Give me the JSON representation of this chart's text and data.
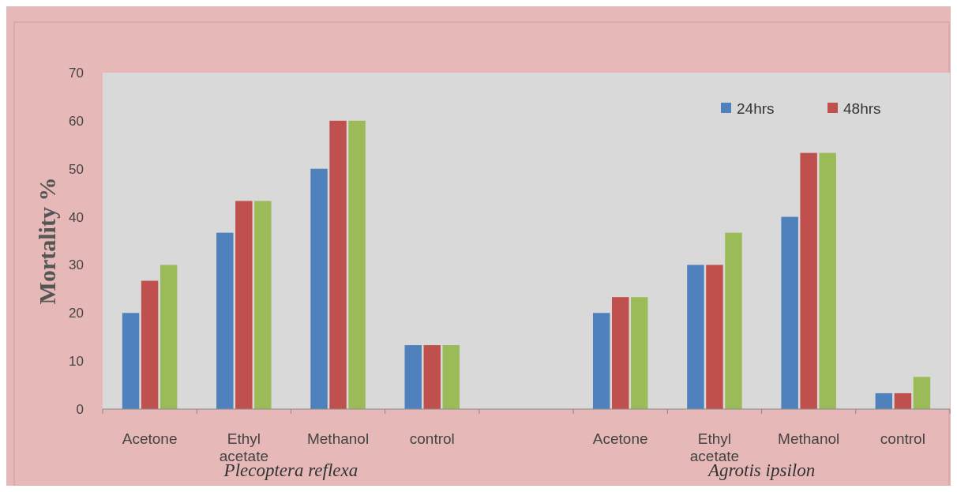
{
  "chart_data": {
    "type": "bar",
    "ylabel": "Mortality %",
    "categories": [
      "Acetone",
      "Ethyl acetate",
      "Methanol",
      "control",
      null,
      "Acetone",
      "Ethyl acetate",
      "Methanol",
      "control"
    ],
    "series": [
      {
        "name": "24hrs",
        "color": "#4f81bd",
        "values": [
          20,
          36.7,
          50,
          13.3,
          null,
          20,
          30,
          40,
          3.3
        ]
      },
      {
        "name": "48hrs",
        "color": "#c0504d",
        "values": [
          26.7,
          43.3,
          60,
          13.3,
          null,
          23.3,
          30,
          53.3,
          3.3
        ]
      },
      {
        "color": "#9bbb59",
        "values": [
          30,
          43.3,
          60,
          13.3,
          null,
          23.3,
          36.7,
          53.3,
          6.7
        ]
      }
    ],
    "ylim": [
      0,
      70
    ],
    "yticks": [
      0,
      10,
      20,
      30,
      40,
      50,
      60,
      70
    ],
    "grid": false,
    "legend": "top right",
    "annotations": [
      "Plecoptera reflexa",
      "Agrotis ipsilon"
    ]
  }
}
